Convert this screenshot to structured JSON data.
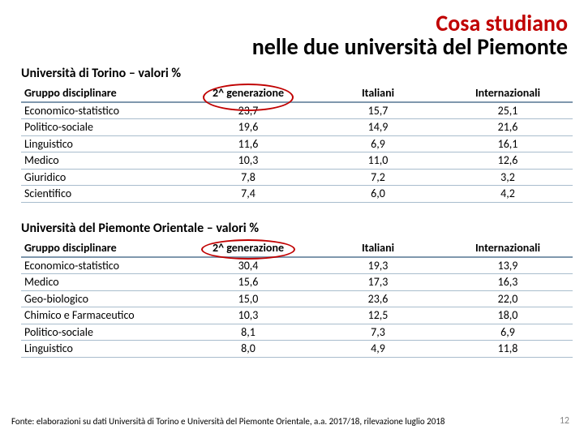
{
  "colors": {
    "accent_red": "#c00000",
    "header_border": "#7f98ad",
    "row_border": "#a9bdcd",
    "pagenum": "#888888",
    "bg": "#ffffff",
    "text": "#000000"
  },
  "title_line1": "Cosa studiano",
  "title_line2": "nelle due università del Piemonte",
  "table1": {
    "caption": "Università di Torino – valori %",
    "columns": [
      "Gruppo disciplinare",
      "2^ generazione",
      "Italiani",
      "Internazionali"
    ],
    "rows": [
      [
        "Economico-statistico",
        "23,7",
        "15,7",
        "25,1"
      ],
      [
        "Politico-sociale",
        "19,6",
        "14,9",
        "21,6"
      ],
      [
        "Linguistico",
        "11,6",
        "6,9",
        "16,1"
      ],
      [
        "Medico",
        "10,3",
        "11,0",
        "12,6"
      ],
      [
        "Giuridico",
        "7,8",
        "7,2",
        "3,2"
      ],
      [
        "Scientifico",
        "7,4",
        "6,0",
        "4,2"
      ]
    ],
    "highlight_header_col": 1
  },
  "table2": {
    "caption": "Università del Piemonte Orientale – valori %",
    "columns": [
      "Gruppo disciplinare",
      "2^ generazione",
      "Italiani",
      "Internazionali"
    ],
    "rows": [
      [
        "Economico-statistico",
        "30,4",
        "19,3",
        "13,9"
      ],
      [
        "Medico",
        "15,6",
        "17,3",
        "16,3"
      ],
      [
        "Geo-biologico",
        "15,0",
        "23,6",
        "22,0"
      ],
      [
        "Chimico e Farmaceutico",
        "10,3",
        "12,5",
        "18,0"
      ],
      [
        "Politico-sociale",
        "8,1",
        "7,3",
        "6,9"
      ],
      [
        "Linguistico",
        "8,0",
        "4,9",
        "11,8"
      ]
    ],
    "highlight_header_col": 1
  },
  "footnote": "Fonte: elaborazioni su dati Università di Torino e Università del Piemonte Orientale, a.a. 2017/18, rilevazione luglio 2018",
  "page_number": "12"
}
